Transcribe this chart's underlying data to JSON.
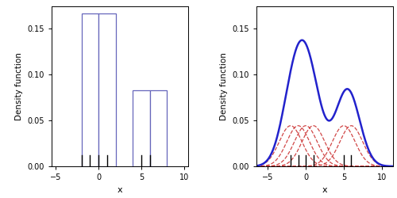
{
  "data_points": [
    -2,
    -1,
    0,
    1,
    5,
    6
  ],
  "bandwidth": 1.5,
  "hist_color": "#6666bb",
  "kde_color": "#2222cc",
  "kernel_color": "#cc3333",
  "xlim_left": [
    -5.5,
    10.5
  ],
  "xlim_right": [
    -6.5,
    11.5
  ],
  "ylim": [
    0.0,
    0.175
  ],
  "yticks": [
    0.0,
    0.05,
    0.1,
    0.15
  ],
  "xticks": [
    -5,
    0,
    5,
    10
  ],
  "xlabel": "x",
  "ylabel": "Density function",
  "hist_bins_edges": [
    -4,
    -2,
    0,
    2,
    4,
    6,
    8
  ],
  "bin_width": 2
}
